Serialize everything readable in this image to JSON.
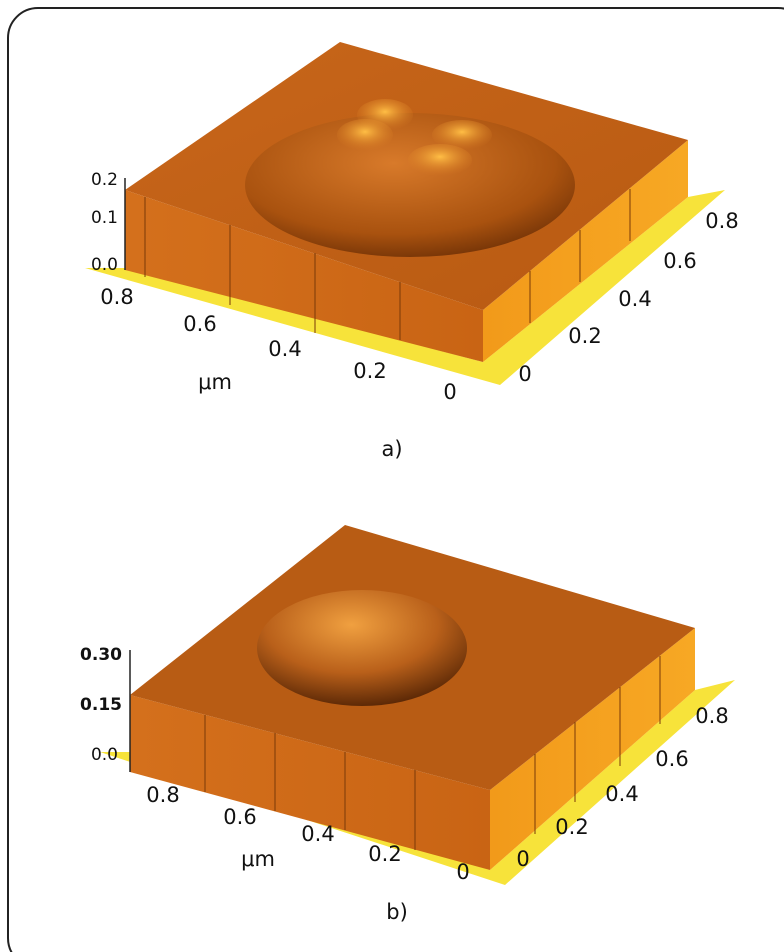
{
  "panels": [
    {
      "z_ticks": [
        "0.2",
        "0.1",
        "0.0"
      ],
      "front_axis_ticks": [
        "0.8",
        "0.6",
        "0.4",
        "0.2",
        "0"
      ],
      "side_axis_ticks": [
        "0",
        "0.2",
        "0.4",
        "0.6",
        "0.8"
      ],
      "unit": "μm",
      "caption": "a)"
    },
    {
      "z_ticks": [
        "0.30",
        "0.15",
        "0.0"
      ],
      "front_axis_ticks": [
        "0.8",
        "0.6",
        "0.4",
        "0.2",
        "0"
      ],
      "side_axis_ticks": [
        "0",
        "0.2",
        "0.4",
        "0.6",
        "0.8"
      ],
      "unit": "μm",
      "caption": "b)"
    }
  ]
}
